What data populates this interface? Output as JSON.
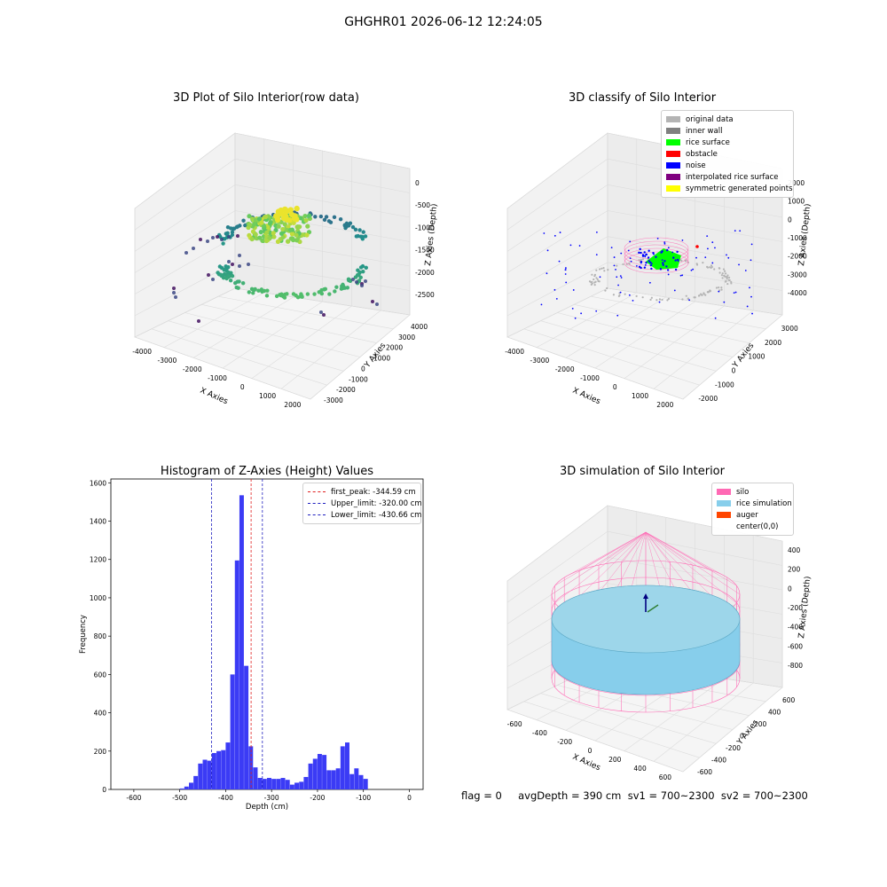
{
  "figure": {
    "suptitle": "GHGHR01 2026-06-12 12:24:05",
    "footer": "flag = 0     avgDepth = 390 cm  sv1 = 700~2300  sv2 = 700~2300"
  },
  "colors": {
    "hist_bar": "#3b3bf5",
    "first_peak": "#e02020",
    "limit_line": "#2020c0",
    "silo": "#ff69b4",
    "rice_simulation": "#87ceeb",
    "auger": "#ff4500"
  },
  "chart_data": [
    {
      "type": "scatter3d",
      "title": "3D Plot of Silo Interior(row data)",
      "xlabel": "X Axies",
      "ylabel": "Y Axies",
      "zlabel": "Z Axies (Depth)",
      "xticks": [
        "-4000",
        "-3000",
        "-2000",
        "-1000",
        "0",
        "1000",
        "2000"
      ],
      "yticks": [
        "-3000",
        "-2000",
        "-1000",
        "0",
        "1000",
        "2000",
        "3000",
        "4000"
      ],
      "zticks": [
        "0",
        "-500",
        "-1000",
        "-1500",
        "-2000",
        "-2500"
      ],
      "colormap": "viridis by depth"
    },
    {
      "type": "scatter3d",
      "title": "3D classify of Silo Interior",
      "xlabel": "X Axies",
      "ylabel": "Y Axies",
      "zlabel": "Z Axies (Depth)",
      "xticks": [
        "-4000",
        "-3000",
        "-2000",
        "-1000",
        "0",
        "1000",
        "2000"
      ],
      "yticks": [
        "-2000",
        "-1000",
        "0",
        "1000",
        "2000",
        "3000"
      ],
      "zticks": [
        "2000",
        "1000",
        "0",
        "-1000",
        "-2000",
        "-3000",
        "-4000"
      ],
      "legend": [
        {
          "label": "original data",
          "color": "#b4b4b4"
        },
        {
          "label": "inner wall",
          "color": "#808080"
        },
        {
          "label": "rice surface",
          "color": "#00ff00"
        },
        {
          "label": "obstacle",
          "color": "#ff0000"
        },
        {
          "label": "noise",
          "color": "#0000ff"
        },
        {
          "label": "interpolated rice surface",
          "color": "#800080"
        },
        {
          "label": "symmetric generated points",
          "color": "#ffff00"
        }
      ]
    },
    {
      "type": "bar",
      "title": "Histogram of Z-Axies (Height) Values",
      "xlabel": "Depth (cm)",
      "ylabel": "Frequency",
      "xlim": [
        -650,
        30
      ],
      "ylim": [
        0,
        1620
      ],
      "xticks": [
        -600,
        -500,
        -400,
        -300,
        -200,
        -100,
        0
      ],
      "yticks": [
        0,
        200,
        400,
        600,
        800,
        1000,
        1200,
        1400,
        1600
      ],
      "bin_width": 10,
      "bins": [
        [
          -500,
          5
        ],
        [
          -490,
          15
        ],
        [
          -480,
          35
        ],
        [
          -470,
          70
        ],
        [
          -460,
          135
        ],
        [
          -450,
          155
        ],
        [
          -440,
          150
        ],
        [
          -430,
          190
        ],
        [
          -420,
          200
        ],
        [
          -410,
          205
        ],
        [
          -400,
          245
        ],
        [
          -390,
          600
        ],
        [
          -380,
          1195
        ],
        [
          -370,
          1535
        ],
        [
          -360,
          645
        ],
        [
          -350,
          225
        ],
        [
          -340,
          115
        ],
        [
          -330,
          60
        ],
        [
          -320,
          55
        ],
        [
          -310,
          60
        ],
        [
          -300,
          55
        ],
        [
          -290,
          55
        ],
        [
          -280,
          60
        ],
        [
          -270,
          50
        ],
        [
          -260,
          25
        ],
        [
          -250,
          35
        ],
        [
          -240,
          40
        ],
        [
          -230,
          65
        ],
        [
          -220,
          135
        ],
        [
          -210,
          160
        ],
        [
          -200,
          185
        ],
        [
          -190,
          180
        ],
        [
          -180,
          100
        ],
        [
          -170,
          100
        ],
        [
          -160,
          110
        ],
        [
          -150,
          225
        ],
        [
          -140,
          245
        ],
        [
          -130,
          80
        ],
        [
          -120,
          110
        ],
        [
          -110,
          75
        ],
        [
          -100,
          55
        ]
      ],
      "lines": [
        {
          "label": "first_peak: -344.59 cm",
          "x": -344.59,
          "color": "#e02020"
        },
        {
          "label": "Upper_limit: -320.00 cm",
          "x": -320.0,
          "color": "#2020c0"
        },
        {
          "label": "Lower_limit: -430.66 cm",
          "x": -430.66,
          "color": "#2020c0"
        }
      ]
    },
    {
      "type": "surface3d",
      "title": "3D simulation of Silo Interior",
      "xlabel": "X Axies",
      "ylabel": "Y Axies",
      "zlabel": "Z Axies (Depth)",
      "xticks": [
        "-600",
        "-400",
        "-200",
        "0",
        "200",
        "400",
        "600"
      ],
      "yticks": [
        "-600",
        "-400",
        "-200",
        "0",
        "200",
        "400",
        "600"
      ],
      "zticks": [
        "400",
        "200",
        "0",
        "-200",
        "-400",
        "-600",
        "-800"
      ],
      "legend": [
        {
          "label": "silo",
          "color": "#ff69b4"
        },
        {
          "label": "rice simulation",
          "color": "#87ceeb"
        },
        {
          "label": "auger",
          "color": "#ff4500"
        },
        {
          "label": "center(0,0)",
          "color": ""
        }
      ]
    }
  ]
}
